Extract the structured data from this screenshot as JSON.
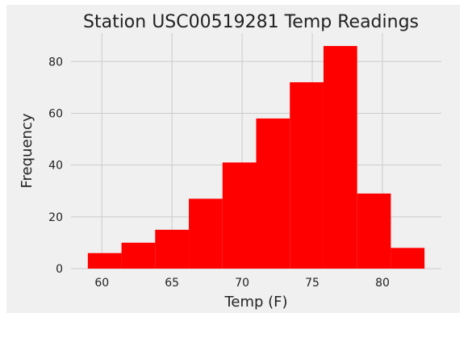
{
  "chart_data": {
    "type": "histogram",
    "title": "Station USC00519281 Temp Readings",
    "xlabel": "Temp (F)",
    "ylabel": "Frequency",
    "xlim": [
      57.8,
      84.2
    ],
    "ylim": [
      0,
      91
    ],
    "x_ticks": [
      60,
      65,
      70,
      75,
      80
    ],
    "y_ticks": [
      0,
      20,
      40,
      60,
      80
    ],
    "grid": true,
    "bar_color": "#ff0000",
    "background": "#f0f0f0",
    "bin_edges": [
      59.0,
      61.4,
      63.8,
      66.2,
      68.6,
      71.0,
      73.4,
      75.8,
      78.2,
      80.6,
      83.0
    ],
    "values": [
      6,
      10,
      15,
      27,
      41,
      58,
      72,
      86,
      29,
      8
    ]
  }
}
